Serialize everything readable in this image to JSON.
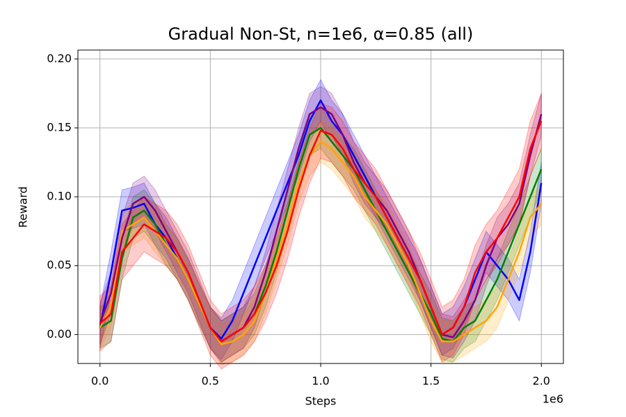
{
  "chart_data": {
    "type": "line",
    "title": "Gradual Non-St, n=1e6, α=0.85 (all)",
    "x_label": "Steps",
    "y_label": "Reward",
    "x_offset_label": "1e6",
    "x": [
      0,
      50000,
      100000,
      150000,
      200000,
      250000,
      300000,
      350000,
      400000,
      450000,
      500000,
      550000,
      600000,
      650000,
      700000,
      750000,
      800000,
      850000,
      900000,
      950000,
      1000000,
      1050000,
      1100000,
      1150000,
      1200000,
      1250000,
      1300000,
      1350000,
      1400000,
      1450000,
      1500000,
      1550000,
      1600000,
      1650000,
      1700000,
      1750000,
      1800000,
      1850000,
      1900000,
      1950000,
      2000000
    ],
    "series": [
      {
        "color": "#0000ff",
        "spread": 0.015,
        "values": [
          0.005,
          0.045,
          0.09,
          0.092,
          0.095,
          0.08,
          0.07,
          0.055,
          0.04,
          0.022,
          0.005,
          -0.003,
          0.01,
          0.03,
          0.05,
          0.07,
          0.09,
          0.11,
          0.13,
          0.155,
          0.17,
          0.155,
          0.145,
          0.13,
          0.115,
          0.1,
          0.085,
          0.07,
          0.055,
          0.04,
          0.02,
          0,
          0.005,
          0.02,
          0.04,
          0.06,
          0.05,
          0.04,
          0.025,
          0.06,
          0.11
        ]
      },
      {
        "color": "#008000",
        "spread": 0.015,
        "values": [
          0.005,
          0.01,
          0.055,
          0.085,
          0.09,
          0.08,
          0.065,
          0.055,
          0.04,
          0.022,
          0.005,
          -0.005,
          0,
          0.005,
          0.015,
          0.035,
          0.06,
          0.09,
          0.12,
          0.145,
          0.15,
          0.14,
          0.13,
          0.12,
          0.105,
          0.09,
          0.075,
          0.06,
          0.045,
          0.03,
          0.015,
          -0.003,
          -0.005,
          0.005,
          0.01,
          0.025,
          0.04,
          0.06,
          0.08,
          0.1,
          0.12
        ]
      },
      {
        "color": "#ffa500",
        "spread": 0.015,
        "values": [
          0.005,
          0.02,
          0.075,
          0.08,
          0.085,
          0.075,
          0.065,
          0.055,
          0.04,
          0.022,
          0.005,
          -0.007,
          -0.005,
          0,
          0.01,
          0.03,
          0.055,
          0.08,
          0.11,
          0.13,
          0.14,
          0.135,
          0.125,
          0.115,
          0.1,
          0.09,
          0.08,
          0.065,
          0.05,
          0.03,
          0.01,
          -0.005,
          -0.005,
          0,
          0.005,
          0.01,
          0.02,
          0.04,
          0.06,
          0.085,
          0.095
        ]
      },
      {
        "color": "#800080",
        "spread": 0.015,
        "values": [
          0.008,
          0.03,
          0.07,
          0.095,
          0.1,
          0.09,
          0.075,
          0.06,
          0.045,
          0.025,
          0.005,
          -0.005,
          0,
          0.005,
          0.02,
          0.045,
          0.075,
          0.105,
          0.135,
          0.16,
          0.165,
          0.16,
          0.145,
          0.125,
          0.11,
          0.1,
          0.09,
          0.075,
          0.06,
          0.04,
          0.02,
          0,
          -0.002,
          0.01,
          0.025,
          0.05,
          0.07,
          0.08,
          0.095,
          0.13,
          0.16
        ]
      },
      {
        "color": "#ff0000",
        "spread": 0.02,
        "values": [
          0.008,
          0.015,
          0.06,
          0.07,
          0.08,
          0.075,
          0.07,
          0.06,
          0.045,
          0.025,
          0.005,
          -0.005,
          0,
          0.005,
          0.015,
          0.03,
          0.05,
          0.075,
          0.105,
          0.13,
          0.148,
          0.145,
          0.135,
          0.12,
          0.11,
          0.1,
          0.085,
          0.07,
          0.055,
          0.04,
          0.02,
          0,
          0.005,
          0.02,
          0.045,
          0.06,
          0.07,
          0.085,
          0.1,
          0.135,
          0.155
        ]
      }
    ],
    "xlim": [
      -100000,
      2100000
    ],
    "xticks": [
      {
        "value": 0,
        "label": "0.0"
      },
      {
        "value": 500000,
        "label": "0.5"
      },
      {
        "value": 1000000,
        "label": "1.0"
      },
      {
        "value": 1500000,
        "label": "1.5"
      },
      {
        "value": 2000000,
        "label": "2.0"
      }
    ],
    "ylim": [
      -0.021,
      0.2065
    ],
    "yticks": [
      {
        "value": 0,
        "label": "0.00"
      },
      0.05,
      {
        "value": 0.1,
        "label": "0.10"
      },
      0.15,
      {
        "value": 0.2,
        "label": "0.20"
      }
    ],
    "grid": true
  }
}
